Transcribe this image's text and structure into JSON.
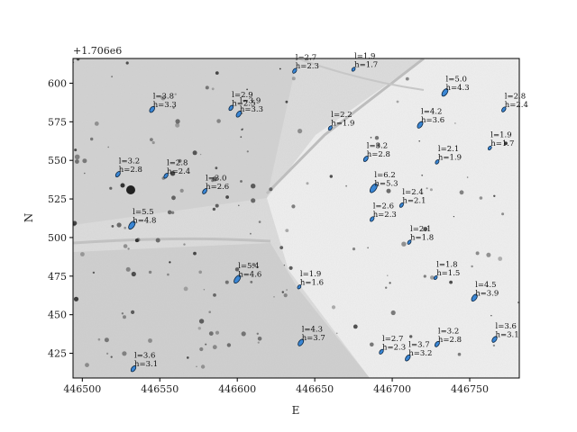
{
  "chart_data": {
    "type": "scatter",
    "title": "",
    "xlabel": "E",
    "ylabel": "N",
    "y_offset_label": "+1.706e6",
    "xlim": [
      446494,
      446782
    ],
    "ylim": [
      409,
      616
    ],
    "x_ticks": [
      446500,
      446550,
      446600,
      446650,
      446700,
      446750
    ],
    "y_ticks": [
      425,
      450,
      475,
      500,
      525,
      550,
      575,
      600
    ],
    "x_tick_labels": [
      "446500",
      "446550",
      "446600",
      "446650",
      "446700",
      "446750"
    ],
    "y_tick_labels": [
      "425",
      "450",
      "475",
      "500",
      "525",
      "550",
      "575",
      "600"
    ],
    "background": "grayscale aerial image",
    "marker_color": "#3a86d4",
    "points": [
      {
        "e": 446523,
        "n": 541,
        "l": 3.2,
        "h": 2.8,
        "label": "l=3.2\nh=2.8"
      },
      {
        "e": 446532,
        "n": 508,
        "l": 5.5,
        "h": 4.8,
        "label": "l=5.5\nh=4.8"
      },
      {
        "e": 446533,
        "n": 415,
        "l": 3.6,
        "h": 3.1,
        "label": "l=3.6\nh=3.1"
      },
      {
        "e": 446545,
        "n": 583,
        "l": 3.8,
        "h": 3.3,
        "label": "l=3.8\nh=3.3"
      },
      {
        "e": 446554,
        "n": 540,
        "l": 2.8,
        "h": 2.4,
        "label": "l=2.8\nh=2.4"
      },
      {
        "e": 446579,
        "n": 530,
        "l": 3.0,
        "h": 2.6,
        "label": "l=3.0\nh=2.6"
      },
      {
        "e": 446596,
        "n": 584,
        "l": 2.9,
        "h": 2.5,
        "label": "l=2.9\nh=2.5"
      },
      {
        "e": 446601,
        "n": 580,
        "l": 3.9,
        "h": 3.3,
        "label": "l=3.9\nh=3.3"
      },
      {
        "e": 446600,
        "n": 473,
        "l": 5.4,
        "h": 4.6,
        "label": "l=5.4\nh=4.6"
      },
      {
        "e": 446637,
        "n": 608,
        "l": 2.7,
        "h": 2.3,
        "label": "l=2.7\nh=2.3"
      },
      {
        "e": 446640,
        "n": 468,
        "l": 1.9,
        "h": 1.6,
        "label": "l=1.9\nh=1.6"
      },
      {
        "e": 446641,
        "n": 432,
        "l": 4.3,
        "h": 3.7,
        "label": "l=4.3\nh=3.7"
      },
      {
        "e": 446660,
        "n": 571,
        "l": 2.2,
        "h": 1.9,
        "label": "l=2.2\nh=1.9"
      },
      {
        "e": 446675,
        "n": 609,
        "l": 1.9,
        "h": 1.7,
        "label": "l=1.9\nh=1.7"
      },
      {
        "e": 446683,
        "n": 551,
        "l": 3.2,
        "h": 2.8,
        "label": "l=3.2\nh=2.8"
      },
      {
        "e": 446688,
        "n": 532,
        "l": 6.2,
        "h": 5.3,
        "label": "l=6.2\nh=5.3"
      },
      {
        "e": 446687,
        "n": 512,
        "l": 2.6,
        "h": 2.3,
        "label": "l=2.6\nh=2.3"
      },
      {
        "e": 446693,
        "n": 426,
        "l": 2.7,
        "h": 2.3,
        "label": "l=2.7\nh=2.3"
      },
      {
        "e": 446706,
        "n": 521,
        "l": 2.4,
        "h": 2.1,
        "label": "l=2.4\nh=2.1"
      },
      {
        "e": 446710,
        "n": 422,
        "l": 3.7,
        "h": 3.2,
        "label": "l=3.7\nh=3.2"
      },
      {
        "e": 446711,
        "n": 497,
        "l": 2.1,
        "h": 1.8,
        "label": "l=2.1\nh=1.8"
      },
      {
        "e": 446718,
        "n": 573,
        "l": 4.2,
        "h": 3.6,
        "label": "l=4.2\nh=3.6"
      },
      {
        "e": 446729,
        "n": 549,
        "l": 2.1,
        "h": 1.9,
        "label": "l=2.1\nh=1.9"
      },
      {
        "e": 446728,
        "n": 474,
        "l": 1.8,
        "h": 1.5,
        "label": "l=1.8\nh=1.5"
      },
      {
        "e": 446729,
        "n": 431,
        "l": 3.2,
        "h": 2.8,
        "label": "l=3.2\nh=2.8"
      },
      {
        "e": 446734,
        "n": 594,
        "l": 5.0,
        "h": 4.3,
        "label": "l=5.0\nh=4.3"
      },
      {
        "e": 446753,
        "n": 461,
        "l": 4.5,
        "h": 3.9,
        "label": "l=4.5\nh=3.9"
      },
      {
        "e": 446763,
        "n": 558,
        "l": 1.9,
        "h": 1.7,
        "label": "l=1.9\nh=1.7"
      },
      {
        "e": 446766,
        "n": 434,
        "l": 3.6,
        "h": 3.1,
        "label": "l=3.6\nh=3.1"
      },
      {
        "e": 446772,
        "n": 583,
        "l": 2.8,
        "h": 2.4,
        "label": "l=2.8\nh=2.4"
      }
    ]
  }
}
